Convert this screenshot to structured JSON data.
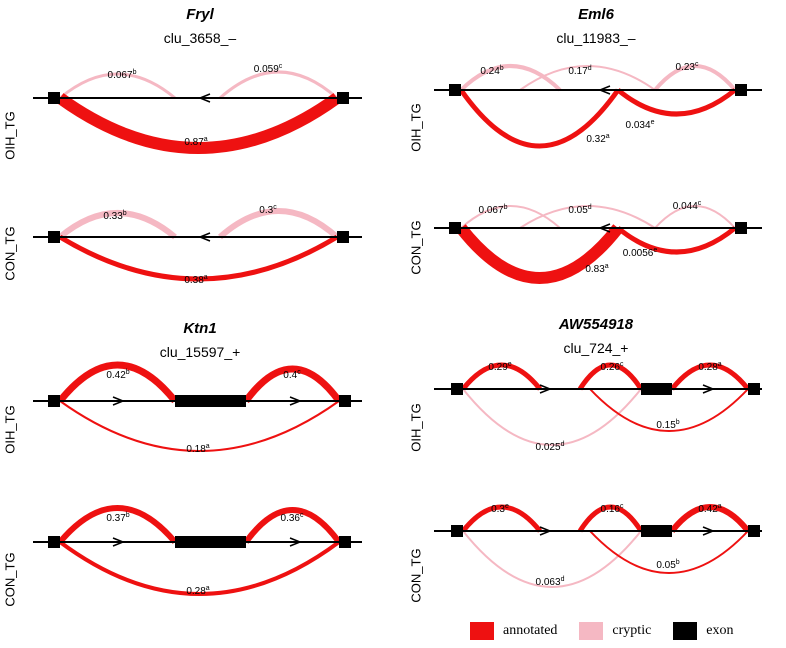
{
  "colors": {
    "annotated": "#ee1111",
    "cryptic": "#f5b8c3",
    "exon": "#000000"
  },
  "legend": [
    {
      "label": "annotated",
      "color": "#ee1111"
    },
    {
      "label": "cryptic",
      "color": "#f5b8c3"
    },
    {
      "label": "exon",
      "color": "#000000"
    }
  ],
  "panels": [
    {
      "gene": "Fryl",
      "cluster": "clu_3658_–",
      "strand": "-",
      "tracks": [
        {
          "label": "OIH_TG",
          "junctions": [
            {
              "value": "0.067",
              "sup": "b",
              "type": "cryptic",
              "side": "above"
            },
            {
              "value": "0.059",
              "sup": "c",
              "type": "cryptic",
              "side": "above"
            },
            {
              "value": "0.87",
              "sup": "a",
              "type": "annotated",
              "side": "below"
            }
          ]
        },
        {
          "label": "CON_TG",
          "junctions": [
            {
              "value": "0.33",
              "sup": "b",
              "type": "cryptic",
              "side": "above"
            },
            {
              "value": "0.3",
              "sup": "c",
              "type": "cryptic",
              "side": "above"
            },
            {
              "value": "0.38",
              "sup": "a",
              "type": "annotated",
              "side": "below"
            }
          ]
        }
      ]
    },
    {
      "gene": "Eml6",
      "cluster": "clu_11983_–",
      "strand": "-",
      "tracks": [
        {
          "label": "OIH_TG",
          "junctions": [
            {
              "value": "0.24",
              "sup": "b",
              "type": "cryptic",
              "side": "above"
            },
            {
              "value": "0.17",
              "sup": "d",
              "type": "cryptic",
              "side": "above"
            },
            {
              "value": "0.23",
              "sup": "c",
              "type": "cryptic",
              "side": "above"
            },
            {
              "value": "0.32",
              "sup": "a",
              "type": "annotated",
              "side": "below"
            },
            {
              "value": "0.034",
              "sup": "e",
              "type": "annotated",
              "side": "below"
            }
          ]
        },
        {
          "label": "CON_TG",
          "junctions": [
            {
              "value": "0.067",
              "sup": "b",
              "type": "cryptic",
              "side": "above"
            },
            {
              "value": "0.05",
              "sup": "d",
              "type": "cryptic",
              "side": "above"
            },
            {
              "value": "0.044",
              "sup": "c",
              "type": "cryptic",
              "side": "above"
            },
            {
              "value": "0.83",
              "sup": "a",
              "type": "annotated",
              "side": "below"
            },
            {
              "value": "0.0056",
              "sup": "e",
              "type": "annotated",
              "side": "below"
            }
          ]
        }
      ]
    },
    {
      "gene": "Ktn1",
      "cluster": "clu_15597_+",
      "strand": "+",
      "tracks": [
        {
          "label": "OIH_TG",
          "junctions": [
            {
              "value": "0.42",
              "sup": "b",
              "type": "annotated",
              "side": "above"
            },
            {
              "value": "0.4",
              "sup": "c",
              "type": "annotated",
              "side": "above"
            },
            {
              "value": "0.18",
              "sup": "a",
              "type": "annotated",
              "side": "below"
            }
          ]
        },
        {
          "label": "CON_TG",
          "junctions": [
            {
              "value": "0.37",
              "sup": "b",
              "type": "annotated",
              "side": "above"
            },
            {
              "value": "0.36",
              "sup": "c",
              "type": "annotated",
              "side": "above"
            },
            {
              "value": "0.28",
              "sup": "a",
              "type": "annotated",
              "side": "below"
            }
          ]
        }
      ]
    },
    {
      "gene": "AW554918",
      "cluster": "clu_724_+",
      "strand": "+",
      "tracks": [
        {
          "label": "OIH_TG",
          "junctions": [
            {
              "value": "0.29",
              "sup": "e",
              "type": "annotated",
              "side": "above"
            },
            {
              "value": "0.26",
              "sup": "c",
              "type": "annotated",
              "side": "above"
            },
            {
              "value": "0.28",
              "sup": "a",
              "type": "annotated",
              "side": "above"
            },
            {
              "value": "0.025",
              "sup": "d",
              "type": "cryptic",
              "side": "below"
            },
            {
              "value": "0.15",
              "sup": "b",
              "type": "annotated",
              "side": "below"
            }
          ]
        },
        {
          "label": "CON_TG",
          "junctions": [
            {
              "value": "0.3",
              "sup": "e",
              "type": "annotated",
              "side": "above"
            },
            {
              "value": "0.16",
              "sup": "c",
              "type": "annotated",
              "side": "above"
            },
            {
              "value": "0.42",
              "sup": "a",
              "type": "annotated",
              "side": "above"
            },
            {
              "value": "0.063",
              "sup": "d",
              "type": "cryptic",
              "side": "below"
            },
            {
              "value": "0.05",
              "sup": "b",
              "type": "annotated",
              "side": "below"
            }
          ]
        }
      ]
    }
  ]
}
